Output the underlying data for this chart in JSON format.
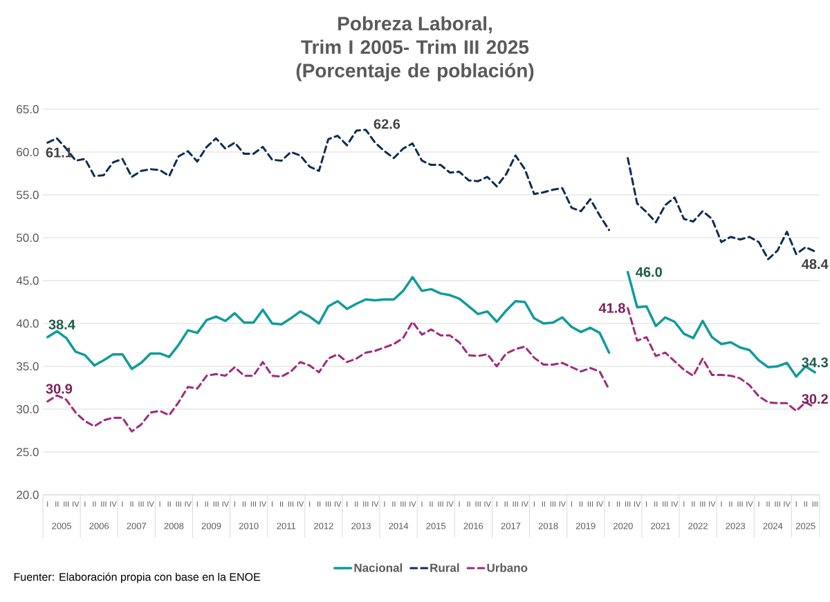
{
  "chart_data": {
    "type": "line",
    "title": "Pobreza Laboral,",
    "subtitle": "Trim I 2005- Trim III 2025 (Porcentaje de población)",
    "categories": [
      "I",
      "II",
      "III",
      "IV",
      "I",
      "II",
      "III",
      "IV",
      "I",
      "II",
      "III",
      "IV",
      "I",
      "II",
      "III",
      "IV",
      "I",
      "II",
      "III",
      "IV",
      "I",
      "II",
      "III",
      "IV",
      "I",
      "II",
      "III",
      "IV",
      "I",
      "II",
      "III",
      "IV",
      "I",
      "II",
      "III",
      "IV",
      "I",
      "II",
      "III",
      "IV",
      "I",
      "II",
      "III",
      "IV",
      "I",
      "II",
      "III",
      "IV",
      "I",
      "II",
      "III",
      "IV",
      "I",
      "II",
      "III",
      "IV",
      "I",
      "II",
      "III",
      "IV",
      "I",
      "II",
      "III",
      "IV",
      "I",
      "II",
      "III",
      "IV",
      "I",
      "II",
      "III",
      "IV",
      "I",
      "II",
      "III",
      "IV",
      "I",
      "II",
      "III",
      "IV",
      "I",
      "II",
      "III"
    ],
    "series": [
      {
        "name": "Nacional",
        "color": "#0f9b9b",
        "line_style": "solid",
        "values": [
          38.4,
          39.1,
          38.3,
          36.7,
          36.3,
          35.1,
          35.7,
          36.4,
          36.4,
          34.7,
          35.4,
          36.5,
          36.5,
          36.1,
          37.5,
          39.2,
          38.9,
          40.4,
          40.8,
          40.3,
          41.2,
          40.1,
          40.1,
          41.6,
          40.0,
          39.9,
          40.6,
          41.4,
          40.8,
          40.0,
          42.0,
          42.6,
          41.7,
          42.3,
          42.8,
          42.7,
          42.8,
          42.8,
          43.8,
          45.4,
          43.8,
          44.0,
          43.5,
          43.3,
          42.9,
          42.0,
          41.1,
          41.4,
          40.2,
          41.5,
          42.6,
          42.5,
          40.6,
          40.0,
          40.1,
          40.7,
          39.6,
          39.0,
          39.5,
          38.9,
          36.6,
          null,
          46.0,
          41.9,
          42.0,
          39.7,
          40.7,
          40.2,
          38.8,
          38.3,
          40.3,
          38.4,
          37.6,
          37.8,
          37.2,
          36.9,
          35.7,
          34.9,
          35.0,
          35.4,
          33.8,
          35.0,
          34.3
        ],
        "value_labels": [
          "38.4",
          null,
          null,
          null,
          null,
          null,
          null,
          null,
          null,
          null,
          null,
          null,
          null,
          null,
          null,
          null,
          null,
          null,
          null,
          null,
          null,
          null,
          null,
          null,
          null,
          null,
          null,
          null,
          null,
          null,
          null,
          null,
          null,
          null,
          null,
          null,
          null,
          null,
          null,
          null,
          null,
          null,
          null,
          null,
          null,
          null,
          null,
          null,
          null,
          null,
          null,
          null,
          null,
          null,
          null,
          null,
          null,
          null,
          null,
          null,
          null,
          null,
          "46.0",
          null,
          null,
          null,
          null,
          null,
          null,
          null,
          null,
          null,
          null,
          null,
          null,
          null,
          null,
          null,
          null,
          null,
          null,
          null,
          "34.3"
        ]
      },
      {
        "name": "Rural",
        "color": "#0d2c54",
        "line_style": "dashed",
        "values": [
          61.1,
          61.6,
          60.4,
          59.0,
          59.2,
          57.2,
          57.3,
          58.8,
          59.2,
          57.1,
          57.8,
          58.0,
          57.9,
          57.2,
          59.5,
          60.1,
          58.9,
          60.6,
          61.6,
          60.4,
          61.1,
          59.8,
          59.8,
          60.6,
          59.1,
          59.0,
          60.0,
          59.6,
          58.3,
          57.8,
          61.5,
          61.9,
          60.8,
          62.5,
          62.6,
          61.1,
          60.1,
          59.3,
          60.4,
          61.0,
          59.0,
          58.5,
          58.5,
          57.6,
          57.7,
          56.7,
          56.6,
          57.1,
          56.0,
          57.4,
          59.6,
          58.0,
          55.1,
          55.3,
          55.6,
          55.8,
          53.5,
          53.1,
          54.5,
          52.6,
          50.9,
          null,
          59.3,
          54.0,
          53.0,
          51.8,
          53.8,
          54.7,
          52.2,
          51.9,
          53.1,
          52.2,
          49.5,
          50.1,
          49.8,
          50.1,
          49.5,
          47.5,
          48.5,
          50.7,
          48.1,
          48.9,
          48.4
        ],
        "value_labels": [
          "61.1",
          null,
          null,
          null,
          null,
          null,
          null,
          null,
          null,
          null,
          null,
          null,
          null,
          null,
          null,
          null,
          null,
          null,
          null,
          null,
          null,
          null,
          null,
          null,
          null,
          null,
          null,
          null,
          null,
          null,
          null,
          null,
          null,
          null,
          "62.6",
          null,
          null,
          null,
          null,
          null,
          null,
          null,
          null,
          null,
          null,
          null,
          null,
          null,
          null,
          null,
          null,
          null,
          null,
          null,
          null,
          null,
          null,
          null,
          null,
          null,
          null,
          null,
          null,
          null,
          null,
          null,
          null,
          null,
          null,
          null,
          null,
          null,
          null,
          null,
          null,
          null,
          null,
          null,
          null,
          null,
          null,
          null,
          "48.4"
        ]
      },
      {
        "name": "Urbano",
        "color": "#a0287e",
        "line_style": "dashed",
        "values": [
          30.9,
          31.6,
          31.1,
          29.6,
          28.6,
          28.0,
          28.7,
          29.0,
          29.0,
          27.4,
          28.2,
          29.6,
          29.8,
          29.3,
          30.8,
          32.6,
          32.4,
          33.9,
          34.1,
          33.9,
          34.9,
          33.9,
          33.9,
          35.5,
          33.9,
          33.8,
          34.4,
          35.5,
          35.1,
          34.3,
          35.9,
          36.4,
          35.5,
          35.9,
          36.6,
          36.8,
          37.2,
          37.6,
          38.3,
          40.2,
          38.7,
          39.3,
          38.6,
          38.6,
          37.8,
          36.3,
          36.2,
          36.4,
          35.0,
          36.5,
          37.0,
          37.3,
          36.0,
          35.2,
          35.2,
          35.4,
          34.9,
          34.4,
          34.8,
          34.4,
          32.3,
          null,
          41.8,
          38.0,
          38.4,
          36.2,
          36.6,
          35.6,
          34.6,
          33.9,
          35.9,
          34.0,
          34.0,
          33.9,
          33.6,
          32.8,
          31.5,
          30.8,
          30.7,
          30.7,
          29.8,
          30.8,
          30.2
        ],
        "value_labels": [
          "30.9",
          null,
          null,
          null,
          null,
          null,
          null,
          null,
          null,
          null,
          null,
          null,
          null,
          null,
          null,
          null,
          null,
          null,
          null,
          null,
          null,
          null,
          null,
          null,
          null,
          null,
          null,
          null,
          null,
          null,
          null,
          null,
          null,
          null,
          null,
          null,
          null,
          null,
          null,
          null,
          null,
          null,
          null,
          null,
          null,
          null,
          null,
          null,
          null,
          null,
          null,
          null,
          null,
          null,
          null,
          null,
          null,
          null,
          null,
          null,
          null,
          null,
          "41.8",
          null,
          null,
          null,
          null,
          null,
          null,
          null,
          null,
          null,
          null,
          null,
          null,
          null,
          null,
          null,
          null,
          null,
          null,
          null,
          "30.2"
        ]
      }
    ],
    "ylim": [
      20,
      65
    ],
    "yticks": [
      {
        "value": 20,
        "label": "20.0"
      },
      {
        "value": 25,
        "label": "25.0"
      },
      {
        "value": 30,
        "label": "30.0"
      },
      {
        "value": 35,
        "label": "35.0"
      },
      {
        "value": 40,
        "label": "40.0"
      },
      {
        "value": 45,
        "label": "45.0"
      },
      {
        "value": 50,
        "label": "50.0"
      },
      {
        "value": 55,
        "label": "55.0"
      },
      {
        "value": 60,
        "label": "60.0"
      },
      {
        "value": 65,
        "label": "65.0"
      }
    ],
    "grid": "y",
    "legend": "bottom",
    "annotations": [
      "2005",
      "2006",
      "2007",
      "2008",
      "2009",
      "2010",
      "2011",
      "2012",
      "2013",
      "2014",
      "2015",
      "2016",
      "2017",
      "2018",
      "2019",
      "2020",
      "2021",
      "2022",
      "2023",
      "2024",
      "2025",
      "Fuenter: Elaboración propia con base en la ENOE"
    ]
  }
}
